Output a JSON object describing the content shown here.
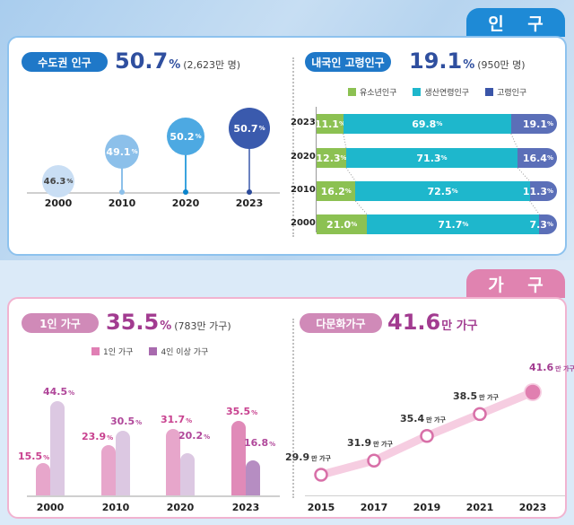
{
  "population": {
    "tab_label": "인 구",
    "capital": {
      "pill": "수도권 인구",
      "value": "50.7",
      "unit": "%",
      "sub": "(2,623만 명)"
    },
    "elderly": {
      "pill": "내국인 고령인구",
      "value": "19.1",
      "unit": "%",
      "sub": "(950만 명)"
    },
    "legend": [
      "유소년인구",
      "생산연령인구",
      "고령인구"
    ]
  },
  "household": {
    "tab_label": "가 구",
    "single": {
      "pill": "1인 가구",
      "value": "35.5",
      "unit": "%",
      "sub": "(783만 가구)"
    },
    "multicultural": {
      "pill": "다문화가구",
      "value": "41.6",
      "unit": "만 가구"
    },
    "legend": [
      "1인 가구",
      "4인 이상 가구"
    ]
  },
  "colors": {
    "pop_blue": "#1e8ad6",
    "hh_pink": "#e083b0",
    "youth_green": "#8cc152",
    "working_cyan": "#1eb7cc",
    "elderly_navy": "#5b6fb8",
    "single_pink": "#e7a6cb",
    "four_plus_lilac": "#dcc8e2"
  },
  "chart_data": [
    {
      "type": "lollipop",
      "title": "수도권 인구",
      "categories": [
        "2000",
        "2010",
        "2020",
        "2023"
      ],
      "values": [
        46.3,
        49.1,
        50.2,
        50.7
      ],
      "labels": [
        "46.3",
        "49.1",
        "50.2",
        "50.7"
      ],
      "unit": "%"
    },
    {
      "type": "bar",
      "orientation": "horizontal-stacked",
      "title": "내국인 고령인구",
      "categories": [
        "2023",
        "2020",
        "2010",
        "2000"
      ],
      "series": [
        {
          "name": "유소년인구",
          "values": [
            11.1,
            12.3,
            16.2,
            21.0
          ],
          "labels": [
            "11.1",
            "12.3",
            "16.2",
            "21.0"
          ]
        },
        {
          "name": "생산연령인구",
          "values": [
            69.8,
            71.3,
            72.5,
            71.7
          ],
          "labels": [
            "69.8",
            "71.3",
            "72.5",
            "71.7"
          ]
        },
        {
          "name": "고령인구",
          "values": [
            19.1,
            16.4,
            11.3,
            7.3
          ],
          "labels": [
            "19.1",
            "16.4",
            "11.3",
            "7.3"
          ]
        }
      ],
      "unit": "%"
    },
    {
      "type": "bar",
      "title": "1인 가구",
      "categories": [
        "2000",
        "2010",
        "2020",
        "2023"
      ],
      "series": [
        {
          "name": "1인 가구",
          "values": [
            15.5,
            23.9,
            31.7,
            35.5
          ],
          "labels": [
            "15.5",
            "23.9",
            "31.7",
            "35.5"
          ]
        },
        {
          "name": "4인 이상 가구",
          "values": [
            44.5,
            30.5,
            20.2,
            16.8
          ],
          "labels": [
            "44.5",
            "30.5",
            "20.2",
            "16.8"
          ]
        }
      ],
      "unit": "%"
    },
    {
      "type": "line",
      "title": "다문화가구",
      "x": [
        "2015",
        "2017",
        "2019",
        "2021",
        "2023"
      ],
      "values": [
        29.9,
        31.9,
        35.4,
        38.5,
        41.6
      ],
      "labels": [
        "29.9",
        "31.9",
        "35.4",
        "38.5",
        "41.6"
      ],
      "unit": "만 가구"
    }
  ],
  "pct": "%"
}
